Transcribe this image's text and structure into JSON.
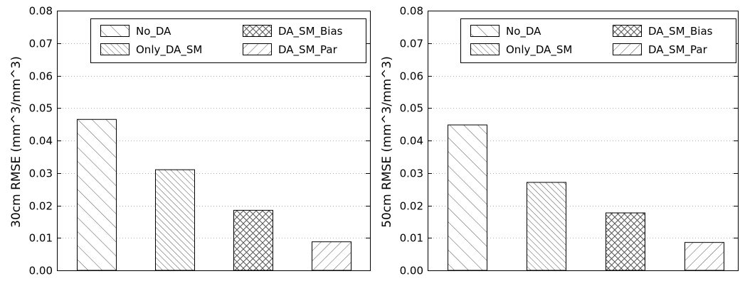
{
  "chart_data": [
    {
      "type": "bar",
      "ylabel": "30cm RMSE (mm^3/mm^3)",
      "ylim": [
        0,
        0.08
      ],
      "yticks": [
        "0.00",
        "0.01",
        "0.02",
        "0.03",
        "0.04",
        "0.05",
        "0.06",
        "0.07",
        "0.08"
      ],
      "grid": "horizontal dotted",
      "legend_position": "top",
      "series": [
        {
          "name": "No_DA",
          "value": 0.0465,
          "hatch": "diagonal-wide"
        },
        {
          "name": "Only_DA_SM",
          "value": 0.031,
          "hatch": "diagonal-dense"
        },
        {
          "name": "DA_SM_Bias",
          "value": 0.0185,
          "hatch": "crosshatch"
        },
        {
          "name": "DA_SM_Par",
          "value": 0.0088,
          "hatch": "back-diagonal"
        }
      ]
    },
    {
      "type": "bar",
      "ylabel": "50cm RMSE (mm^3/mm^3)",
      "ylim": [
        0,
        0.08
      ],
      "yticks": [
        "0.00",
        "0.01",
        "0.02",
        "0.03",
        "0.04",
        "0.05",
        "0.06",
        "0.07",
        "0.08"
      ],
      "grid": "horizontal dotted",
      "legend_position": "top",
      "series": [
        {
          "name": "No_DA",
          "value": 0.0448,
          "hatch": "diagonal-wide"
        },
        {
          "name": "Only_DA_SM",
          "value": 0.0271,
          "hatch": "diagonal-dense"
        },
        {
          "name": "DA_SM_Bias",
          "value": 0.0177,
          "hatch": "crosshatch"
        },
        {
          "name": "DA_SM_Par",
          "value": 0.0086,
          "hatch": "back-diagonal"
        }
      ]
    }
  ]
}
